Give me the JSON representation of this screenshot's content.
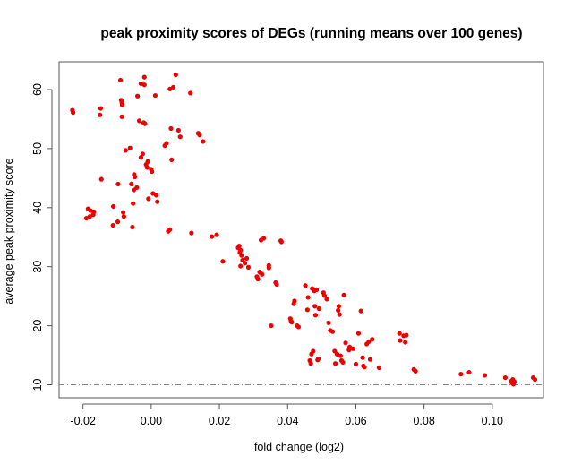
{
  "chart_data": {
    "type": "scatter",
    "title": "peak proximity scores of DEGs (running means over 100 genes)",
    "xlabel": "fold change (log2)",
    "ylabel": "average peak proximity score",
    "xlim": [
      -0.027,
      0.115
    ],
    "ylim": [
      7.8,
      64.7
    ],
    "xticks": [
      -0.02,
      0.0,
      0.02,
      0.04,
      0.06,
      0.08,
      0.1
    ],
    "xtick_labels": [
      "-0.02",
      "0.00",
      "0.02",
      "0.04",
      "0.06",
      "0.08",
      "0.10"
    ],
    "yticks": [
      10,
      20,
      30,
      40,
      50,
      60
    ],
    "ytick_labels": [
      "10",
      "20",
      "30",
      "40",
      "50",
      "60"
    ],
    "grid": false,
    "point_color": "#ee0000",
    "reference_line": {
      "y": 10,
      "style": "dot-dash",
      "color": "#888888"
    },
    "series": [
      {
        "points": [
          [
            -0.0231,
            56.5
          ],
          [
            -0.0229,
            56.1
          ],
          [
            -0.0148,
            56.8
          ],
          [
            -0.015,
            55.7
          ],
          [
            -0.0146,
            44.8
          ],
          [
            -0.0112,
            37.0
          ],
          [
            -0.0111,
            40.2
          ],
          [
            -0.0098,
            37.6
          ],
          [
            -0.0097,
            44.0
          ],
          [
            -0.009,
            61.6
          ],
          [
            -0.0088,
            58.2
          ],
          [
            -0.0086,
            57.8
          ],
          [
            -0.0085,
            57.4
          ],
          [
            -0.0086,
            55.4
          ],
          [
            -0.0082,
            39.2
          ],
          [
            -0.008,
            38.5
          ],
          [
            -0.0075,
            49.7
          ],
          [
            -0.0062,
            50.1
          ],
          [
            -0.0058,
            44.0
          ],
          [
            -0.0055,
            36.7
          ],
          [
            -0.0053,
            40.7
          ],
          [
            -0.005,
            45.6
          ],
          [
            -0.0051,
            43.0
          ],
          [
            -0.0048,
            45.2
          ],
          [
            -0.0042,
            43.4
          ],
          [
            -0.004,
            58.9
          ],
          [
            -0.0035,
            54.7
          ],
          [
            -0.003,
            61.0
          ],
          [
            -0.003,
            48.5
          ],
          [
            -0.0025,
            49.1
          ],
          [
            -0.0022,
            54.4
          ],
          [
            -0.002,
            62.1
          ],
          [
            -0.002,
            60.8
          ],
          [
            -0.0018,
            54.2
          ],
          [
            -0.0015,
            47.3
          ],
          [
            -0.0012,
            46.8
          ],
          [
            -0.001,
            47.8
          ],
          [
            -0.0008,
            41.5
          ],
          [
            0.0,
            46.5
          ],
          [
            0.0002,
            46.1
          ],
          [
            0.0005,
            42.4
          ],
          [
            0.0012,
            59.0
          ],
          [
            0.0015,
            42.1
          ],
          [
            0.0018,
            41.0
          ],
          [
            0.004,
            50.5
          ],
          [
            0.0045,
            50.9
          ],
          [
            0.005,
            36.0
          ],
          [
            0.0055,
            36.3
          ],
          [
            0.0055,
            60.1
          ],
          [
            0.0058,
            53.4
          ],
          [
            0.006,
            48.1
          ],
          [
            0.0065,
            60.4
          ],
          [
            0.0072,
            62.5
          ],
          [
            0.008,
            53.1
          ],
          [
            0.0085,
            52.0
          ],
          [
            0.0115,
            59.4
          ],
          [
            0.0118,
            35.7
          ],
          [
            0.0138,
            52.6
          ],
          [
            0.0142,
            52.3
          ],
          [
            0.0152,
            51.2
          ],
          [
            -0.019,
            38.2
          ],
          [
            -0.0185,
            39.8
          ],
          [
            -0.018,
            38.5
          ],
          [
            -0.0178,
            39.5
          ],
          [
            -0.017,
            38.8
          ],
          [
            -0.0168,
            39.3
          ],
          [
            0.0178,
            35.1
          ],
          [
            0.0192,
            35.4
          ],
          [
            0.021,
            30.9
          ],
          [
            0.0255,
            33.2
          ],
          [
            0.0258,
            33.5
          ],
          [
            0.026,
            32.4
          ],
          [
            0.0262,
            32.8
          ],
          [
            0.0262,
            30.1
          ],
          [
            0.0265,
            31.9
          ],
          [
            0.0268,
            31.1
          ],
          [
            0.0275,
            30.6
          ],
          [
            0.028,
            31.4
          ],
          [
            0.0285,
            29.9
          ],
          [
            0.031,
            28.3
          ],
          [
            0.0313,
            27.9
          ],
          [
            0.0318,
            29.1
          ],
          [
            0.032,
            29.0
          ],
          [
            0.0322,
            34.5
          ],
          [
            0.0325,
            28.7
          ],
          [
            0.033,
            34.8
          ],
          [
            0.0345,
            30.2
          ],
          [
            0.0345,
            29.8
          ],
          [
            0.0352,
            20.0
          ],
          [
            0.0365,
            27.3
          ],
          [
            0.0368,
            27.0
          ],
          [
            0.038,
            34.4
          ],
          [
            0.0382,
            34.2
          ],
          [
            0.0408,
            21.2
          ],
          [
            0.041,
            20.8
          ],
          [
            0.0412,
            20.6
          ],
          [
            0.0418,
            23.7
          ],
          [
            0.042,
            24.2
          ],
          [
            0.0428,
            20.0
          ],
          [
            0.0432,
            19.8
          ],
          [
            0.0452,
            26.8
          ],
          [
            0.0458,
            22.7
          ],
          [
            0.046,
            24.8
          ],
          [
            0.0465,
            14.1
          ],
          [
            0.0468,
            13.6
          ],
          [
            0.047,
            15.2
          ],
          [
            0.0472,
            26.3
          ],
          [
            0.0475,
            15.7
          ],
          [
            0.0478,
            25.9
          ],
          [
            0.048,
            23.3
          ],
          [
            0.0482,
            21.8
          ],
          [
            0.0485,
            26.1
          ],
          [
            0.0488,
            14.2
          ],
          [
            0.049,
            14.4
          ],
          [
            0.0492,
            22.9
          ],
          [
            0.0505,
            25.6
          ],
          [
            0.0508,
            25.1
          ],
          [
            0.0515,
            24.5
          ],
          [
            0.052,
            20.5
          ],
          [
            0.0525,
            19.2
          ],
          [
            0.0532,
            19.0
          ],
          [
            0.0538,
            15.7
          ],
          [
            0.054,
            13.6
          ],
          [
            0.0545,
            15.2
          ],
          [
            0.0548,
            22.6
          ],
          [
            0.055,
            23.3
          ],
          [
            0.0552,
            21.9
          ],
          [
            0.0555,
            14.9
          ],
          [
            0.0558,
            14.1
          ],
          [
            0.0562,
            13.8
          ],
          [
            0.0565,
            25.2
          ],
          [
            0.057,
            17.1
          ],
          [
            0.058,
            15.9
          ],
          [
            0.0582,
            16.4
          ],
          [
            0.0592,
            16.1
          ],
          [
            0.06,
            13.5
          ],
          [
            0.0608,
            18.7
          ],
          [
            0.0615,
            22.5
          ],
          [
            0.062,
            14.6
          ],
          [
            0.0622,
            13.2
          ],
          [
            0.0625,
            13.0
          ],
          [
            0.0632,
            16.9
          ],
          [
            0.0638,
            17.3
          ],
          [
            0.0642,
            14.3
          ],
          [
            0.0648,
            17.7
          ],
          [
            0.0668,
            12.9
          ],
          [
            0.0728,
            18.7
          ],
          [
            0.073,
            17.5
          ],
          [
            0.074,
            18.3
          ],
          [
            0.0745,
            17.2
          ],
          [
            0.0748,
            18.4
          ],
          [
            0.077,
            12.6
          ],
          [
            0.0775,
            12.3
          ],
          [
            0.0908,
            11.8
          ],
          [
            0.0932,
            12.1
          ],
          [
            0.0978,
            11.6
          ],
          [
            0.1038,
            11.2
          ],
          [
            0.1055,
            10.6
          ],
          [
            0.1058,
            10.3
          ],
          [
            0.106,
            10.9
          ],
          [
            0.1062,
            10.1
          ],
          [
            0.1065,
            10.5
          ],
          [
            0.112,
            11.2
          ],
          [
            0.1125,
            10.9
          ]
        ]
      }
    ]
  }
}
